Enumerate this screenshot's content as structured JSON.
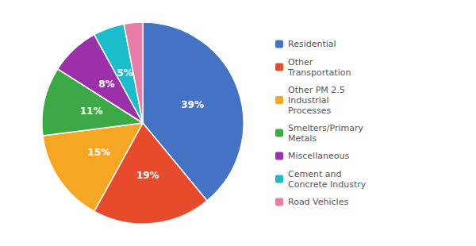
{
  "chart_data": {
    "type": "pie",
    "categories": [
      "Residential",
      "Other\nTransportation",
      "Other PM 2.5\nIndustrial\nProcesses",
      "Smelters/Primary\nMetals",
      "Miscellaneous",
      "Cement and\nConcrete Industry",
      "Road Vehicles"
    ],
    "values": [
      39,
      19,
      15,
      11,
      8,
      5,
      3
    ],
    "value_labels": [
      "39%",
      "19%",
      "15%",
      "11%",
      "8%",
      "5%",
      null
    ],
    "colors": [
      "#4472C4",
      "#E84B2B",
      "#F5A623",
      "#3DA846",
      "#9B30A8",
      "#1BBCCC",
      "#E87DA8"
    ],
    "data_labels": true,
    "legend": "right"
  }
}
